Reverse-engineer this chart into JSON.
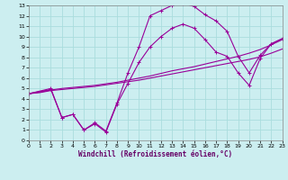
{
  "xlabel": "Windchill (Refroidissement éolien,°C)",
  "bg_color": "#cceef0",
  "grid_color": "#aadddd",
  "line_color": "#990099",
  "xmin": 0,
  "xmax": 23,
  "ymin": 0,
  "ymax": 13,
  "line1_x": [
    0,
    1,
    2,
    3,
    4,
    5,
    6,
    7,
    8,
    9,
    10,
    11,
    12,
    13,
    14,
    15,
    16,
    17,
    18,
    19,
    20,
    21,
    22,
    23
  ],
  "line1_y": [
    4.5,
    4.6,
    4.8,
    4.9,
    5.0,
    5.1,
    5.2,
    5.35,
    5.5,
    5.65,
    5.8,
    6.0,
    6.2,
    6.4,
    6.6,
    6.8,
    7.0,
    7.2,
    7.4,
    7.6,
    7.8,
    8.05,
    8.4,
    8.8
  ],
  "line2_x": [
    0,
    1,
    2,
    3,
    4,
    5,
    6,
    7,
    8,
    9,
    10,
    11,
    12,
    13,
    14,
    15,
    16,
    17,
    18,
    19,
    20,
    21,
    22,
    23
  ],
  "line2_y": [
    4.5,
    4.65,
    4.85,
    5.0,
    5.1,
    5.2,
    5.3,
    5.45,
    5.6,
    5.8,
    6.0,
    6.2,
    6.45,
    6.7,
    6.9,
    7.1,
    7.35,
    7.6,
    7.85,
    8.1,
    8.4,
    8.75,
    9.2,
    9.7
  ],
  "line3_x": [
    0,
    2,
    3,
    4,
    5,
    6,
    7,
    8,
    9,
    10,
    11,
    12,
    13,
    14,
    15,
    16,
    17,
    18,
    19,
    20,
    21,
    22,
    23
  ],
  "line3_y": [
    4.5,
    5.0,
    2.2,
    2.5,
    1.0,
    1.7,
    0.9,
    3.6,
    6.5,
    9.0,
    12.0,
    12.5,
    13.0,
    13.2,
    12.9,
    12.1,
    11.5,
    10.5,
    8.1,
    6.5,
    8.2,
    9.3,
    9.8
  ],
  "line4_x": [
    0,
    2,
    3,
    4,
    5,
    6,
    7,
    8,
    9,
    10,
    11,
    12,
    13,
    14,
    15,
    16,
    17,
    18,
    19,
    20,
    21,
    22,
    23
  ],
  "line4_y": [
    4.5,
    4.9,
    2.2,
    2.5,
    1.0,
    1.6,
    0.8,
    3.5,
    5.5,
    7.5,
    9.0,
    10.0,
    10.8,
    11.2,
    10.8,
    9.7,
    8.5,
    8.1,
    6.5,
    5.3,
    7.9,
    9.3,
    9.8
  ]
}
